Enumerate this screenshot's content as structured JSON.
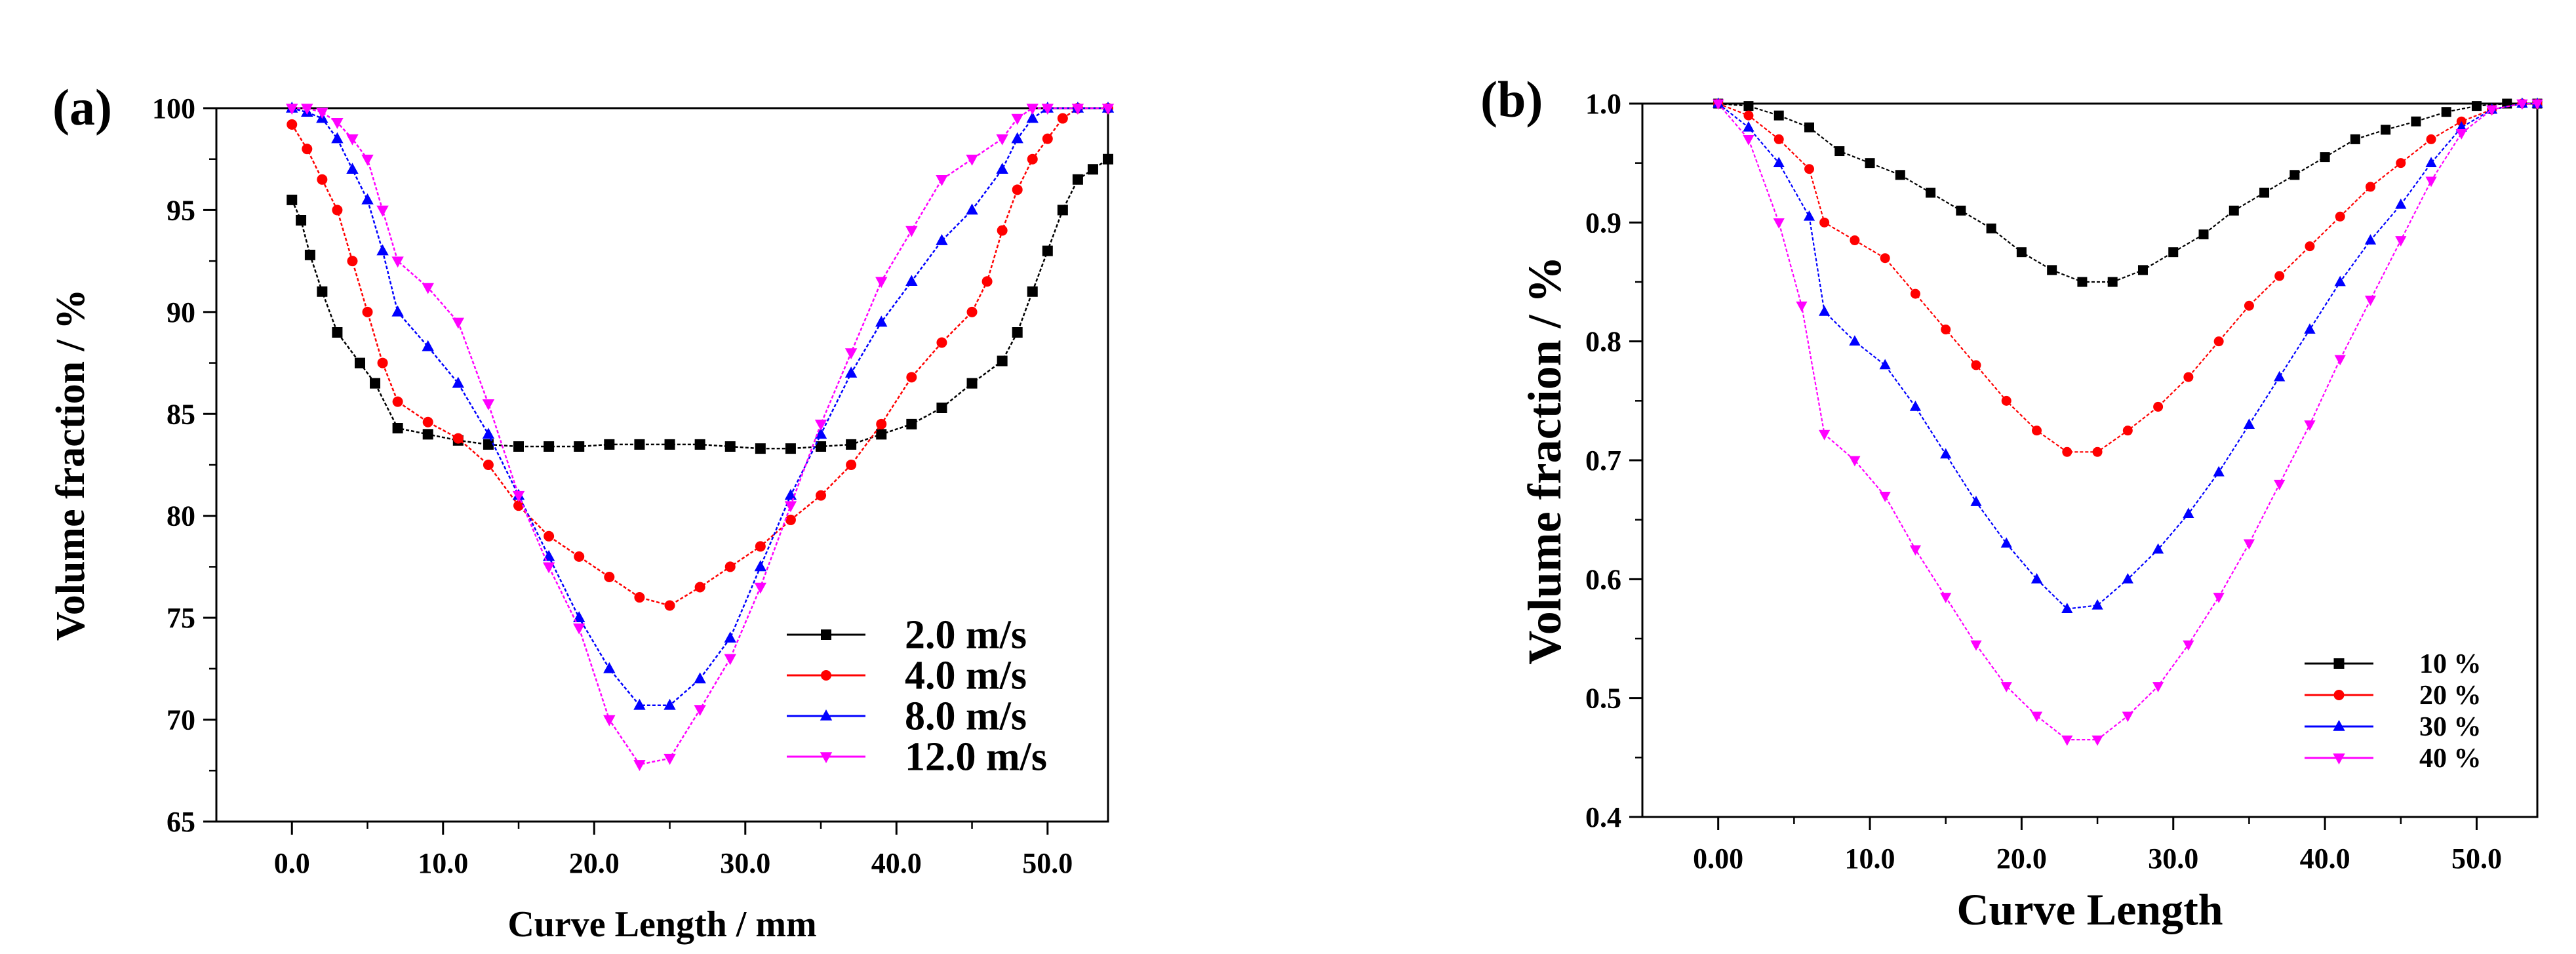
{
  "chart_data": [
    {
      "type": "line",
      "panel_label": "(a)",
      "xlabel": "Curve Length / mm",
      "ylabel": "Volume fraction / %",
      "xlim": [
        -5,
        54
      ],
      "ylim": [
        65,
        100
      ],
      "x_ticks": [
        0,
        10,
        20,
        30,
        40,
        50
      ],
      "x_tick_labels": [
        "0.0",
        "10.0",
        "20.0",
        "30.0",
        "40.0",
        "50.0"
      ],
      "y_ticks": [
        65,
        70,
        75,
        80,
        85,
        90,
        95,
        100
      ],
      "y_tick_labels": [
        "65",
        "70",
        "75",
        "80",
        "85",
        "90",
        "95",
        "100"
      ],
      "legend_position": "bottom-right",
      "series": [
        {
          "name": "2.0 m/s",
          "color": "#000000",
          "marker": "square",
          "points": [
            [
              0,
              95.5
            ],
            [
              0.6,
              94.5
            ],
            [
              1.2,
              92.8
            ],
            [
              2,
              91
            ],
            [
              3,
              89
            ],
            [
              4.5,
              87.5
            ],
            [
              5.5,
              86.5
            ],
            [
              7,
              84.3
            ],
            [
              9,
              84
            ],
            [
              11,
              83.7
            ],
            [
              13,
              83.5
            ],
            [
              15,
              83.4
            ],
            [
              17,
              83.4
            ],
            [
              19,
              83.4
            ],
            [
              21,
              83.5
            ],
            [
              23,
              83.5
            ],
            [
              25,
              83.5
            ],
            [
              27,
              83.5
            ],
            [
              29,
              83.4
            ],
            [
              31,
              83.3
            ],
            [
              33,
              83.3
            ],
            [
              35,
              83.4
            ],
            [
              37,
              83.5
            ],
            [
              39,
              84
            ],
            [
              41,
              84.5
            ],
            [
              43,
              85.3
            ],
            [
              45,
              86.5
            ],
            [
              47,
              87.6
            ],
            [
              48,
              89
            ],
            [
              49,
              91
            ],
            [
              50,
              93
            ],
            [
              51,
              95
            ],
            [
              52,
              96.5
            ],
            [
              53,
              97
            ],
            [
              54,
              97.5
            ]
          ]
        },
        {
          "name": "4.0 m/s",
          "color": "#ff0000",
          "marker": "circle",
          "points": [
            [
              0,
              99.2
            ],
            [
              1,
              98
            ],
            [
              2,
              96.5
            ],
            [
              3,
              95
            ],
            [
              4,
              92.5
            ],
            [
              5,
              90
            ],
            [
              6,
              87.5
            ],
            [
              7,
              85.6
            ],
            [
              9,
              84.6
            ],
            [
              11,
              83.8
            ],
            [
              13,
              82.5
            ],
            [
              15,
              80.5
            ],
            [
              17,
              79
            ],
            [
              19,
              78
            ],
            [
              21,
              77
            ],
            [
              23,
              76
            ],
            [
              25,
              75.6
            ],
            [
              27,
              76.5
            ],
            [
              29,
              77.5
            ],
            [
              31,
              78.5
            ],
            [
              33,
              79.8
            ],
            [
              35,
              81
            ],
            [
              37,
              82.5
            ],
            [
              39,
              84.5
            ],
            [
              41,
              86.8
            ],
            [
              43,
              88.5
            ],
            [
              45,
              90
            ],
            [
              46,
              91.5
            ],
            [
              47,
              94
            ],
            [
              48,
              96
            ],
            [
              49,
              97.5
            ],
            [
              50,
              98.5
            ],
            [
              51,
              99.5
            ],
            [
              52,
              100
            ],
            [
              54,
              100
            ]
          ]
        },
        {
          "name": "8.0 m/s",
          "color": "#0000ff",
          "marker": "triangle-up",
          "points": [
            [
              0,
              100
            ],
            [
              1,
              99.8
            ],
            [
              2,
              99.5
            ],
            [
              3,
              98.5
            ],
            [
              4,
              97
            ],
            [
              5,
              95.5
            ],
            [
              6,
              93
            ],
            [
              7,
              90
            ],
            [
              9,
              88.3
            ],
            [
              11,
              86.5
            ],
            [
              13,
              84
            ],
            [
              15,
              81
            ],
            [
              17,
              78
            ],
            [
              19,
              75
            ],
            [
              21,
              72.5
            ],
            [
              23,
              70.7
            ],
            [
              25,
              70.7
            ],
            [
              27,
              72
            ],
            [
              29,
              74
            ],
            [
              31,
              77.5
            ],
            [
              33,
              81
            ],
            [
              35,
              84
            ],
            [
              37,
              87
            ],
            [
              39,
              89.5
            ],
            [
              41,
              91.5
            ],
            [
              43,
              93.5
            ],
            [
              45,
              95
            ],
            [
              47,
              97
            ],
            [
              48,
              98.5
            ],
            [
              49,
              99.5
            ],
            [
              50,
              100
            ],
            [
              52,
              100
            ],
            [
              54,
              100
            ]
          ]
        },
        {
          "name": "12.0 m/s",
          "color": "#ff00ff",
          "marker": "triangle-down",
          "points": [
            [
              0,
              100
            ],
            [
              1,
              100
            ],
            [
              2,
              99.8
            ],
            [
              3,
              99.3
            ],
            [
              4,
              98.5
            ],
            [
              5,
              97.5
            ],
            [
              6,
              95
            ],
            [
              7,
              92.5
            ],
            [
              9,
              91.2
            ],
            [
              11,
              89.5
            ],
            [
              13,
              85.5
            ],
            [
              15,
              81
            ],
            [
              17,
              77.5
            ],
            [
              19,
              74.5
            ],
            [
              21,
              70
            ],
            [
              23,
              67.8
            ],
            [
              25,
              68.1
            ],
            [
              27,
              70.5
            ],
            [
              29,
              73
            ],
            [
              31,
              76.5
            ],
            [
              33,
              80.5
            ],
            [
              35,
              84.5
            ],
            [
              37,
              88
            ],
            [
              39,
              91.5
            ],
            [
              41,
              94
            ],
            [
              43,
              96.5
            ],
            [
              45,
              97.5
            ],
            [
              47,
              98.5
            ],
            [
              48,
              99.5
            ],
            [
              49,
              100
            ],
            [
              50,
              100
            ],
            [
              52,
              100
            ],
            [
              54,
              100
            ]
          ]
        }
      ]
    },
    {
      "type": "line",
      "panel_label": "(b)",
      "xlabel": "Curve Length",
      "ylabel": "Volume fraction / %",
      "xlim": [
        -5,
        54
      ],
      "ylim": [
        0.4,
        1.0
      ],
      "x_ticks": [
        0,
        10,
        20,
        30,
        40,
        50
      ],
      "x_tick_labels": [
        "0.00",
        "10.0",
        "20.0",
        "30.0",
        "40.0",
        "50.0"
      ],
      "y_ticks": [
        0.4,
        0.5,
        0.6,
        0.7,
        0.8,
        0.9,
        1.0
      ],
      "y_tick_labels": [
        "0.4",
        "0.5",
        "0.6",
        "0.7",
        "0.8",
        "0.9",
        "1.0"
      ],
      "legend_position": "bottom-right",
      "series": [
        {
          "name": "10 %",
          "color": "#000000",
          "marker": "square",
          "points": [
            [
              0,
              1
            ],
            [
              2,
              0.998
            ],
            [
              4,
              0.99
            ],
            [
              6,
              0.98
            ],
            [
              8,
              0.96
            ],
            [
              10,
              0.95
            ],
            [
              12,
              0.94
            ],
            [
              14,
              0.925
            ],
            [
              16,
              0.91
            ],
            [
              18,
              0.895
            ],
            [
              20,
              0.875
            ],
            [
              22,
              0.86
            ],
            [
              24,
              0.85
            ],
            [
              26,
              0.85
            ],
            [
              28,
              0.86
            ],
            [
              30,
              0.875
            ],
            [
              32,
              0.89
            ],
            [
              34,
              0.91
            ],
            [
              36,
              0.925
            ],
            [
              38,
              0.94
            ],
            [
              40,
              0.955
            ],
            [
              42,
              0.97
            ],
            [
              44,
              0.978
            ],
            [
              46,
              0.985
            ],
            [
              48,
              0.993
            ],
            [
              50,
              0.998
            ],
            [
              52,
              1
            ],
            [
              54,
              1
            ]
          ]
        },
        {
          "name": "20 %",
          "color": "#ff0000",
          "marker": "circle",
          "points": [
            [
              0,
              1
            ],
            [
              2,
              0.99
            ],
            [
              4,
              0.97
            ],
            [
              6,
              0.945
            ],
            [
              7,
              0.9
            ],
            [
              9,
              0.885
            ],
            [
              11,
              0.87
            ],
            [
              13,
              0.84
            ],
            [
              15,
              0.81
            ],
            [
              17,
              0.78
            ],
            [
              19,
              0.75
            ],
            [
              21,
              0.725
            ],
            [
              23,
              0.707
            ],
            [
              25,
              0.707
            ],
            [
              27,
              0.725
            ],
            [
              29,
              0.745
            ],
            [
              31,
              0.77
            ],
            [
              33,
              0.8
            ],
            [
              35,
              0.83
            ],
            [
              37,
              0.855
            ],
            [
              39,
              0.88
            ],
            [
              41,
              0.905
            ],
            [
              43,
              0.93
            ],
            [
              45,
              0.95
            ],
            [
              47,
              0.97
            ],
            [
              49,
              0.985
            ],
            [
              51,
              0.995
            ],
            [
              53,
              1
            ],
            [
              54,
              1
            ]
          ]
        },
        {
          "name": "30 %",
          "color": "#0000ff",
          "marker": "triangle-up",
          "points": [
            [
              0,
              1
            ],
            [
              2,
              0.98
            ],
            [
              4,
              0.95
            ],
            [
              6,
              0.905
            ],
            [
              7,
              0.825
            ],
            [
              9,
              0.8
            ],
            [
              11,
              0.78
            ],
            [
              13,
              0.745
            ],
            [
              15,
              0.705
            ],
            [
              17,
              0.665
            ],
            [
              19,
              0.63
            ],
            [
              21,
              0.6
            ],
            [
              23,
              0.575
            ],
            [
              25,
              0.578
            ],
            [
              27,
              0.6
            ],
            [
              29,
              0.625
            ],
            [
              31,
              0.655
            ],
            [
              33,
              0.69
            ],
            [
              35,
              0.73
            ],
            [
              37,
              0.77
            ],
            [
              39,
              0.81
            ],
            [
              41,
              0.85
            ],
            [
              43,
              0.885
            ],
            [
              45,
              0.915
            ],
            [
              47,
              0.95
            ],
            [
              49,
              0.98
            ],
            [
              51,
              0.995
            ],
            [
              53,
              1
            ],
            [
              54,
              1
            ]
          ]
        },
        {
          "name": "40 %",
          "color": "#ff00ff",
          "marker": "triangle-down",
          "points": [
            [
              0,
              1
            ],
            [
              2,
              0.97
            ],
            [
              4,
              0.9
            ],
            [
              5.5,
              0.83
            ],
            [
              7,
              0.722
            ],
            [
              9,
              0.7
            ],
            [
              11,
              0.67
            ],
            [
              13,
              0.625
            ],
            [
              15,
              0.585
            ],
            [
              17,
              0.545
            ],
            [
              19,
              0.51
            ],
            [
              21,
              0.485
            ],
            [
              23,
              0.465
            ],
            [
              25,
              0.465
            ],
            [
              27,
              0.485
            ],
            [
              29,
              0.51
            ],
            [
              31,
              0.545
            ],
            [
              33,
              0.585
            ],
            [
              35,
              0.63
            ],
            [
              37,
              0.68
            ],
            [
              39,
              0.73
            ],
            [
              41,
              0.785
            ],
            [
              43,
              0.835
            ],
            [
              45,
              0.885
            ],
            [
              47,
              0.935
            ],
            [
              49,
              0.975
            ],
            [
              51,
              0.995
            ],
            [
              53,
              1
            ],
            [
              54,
              1
            ]
          ]
        }
      ]
    }
  ]
}
